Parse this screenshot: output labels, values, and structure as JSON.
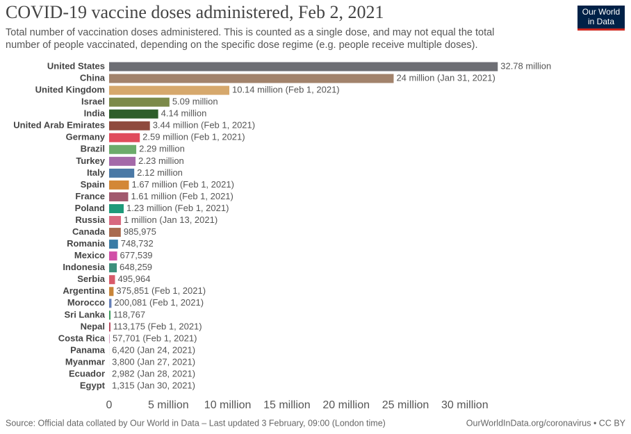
{
  "chart_data": {
    "type": "bar",
    "orientation": "horizontal",
    "title": "COVID-19 vaccine doses administered, Feb 2, 2021",
    "subtitle": [
      "Total number of vaccination doses administered. This is counted as a single dose, and may not equal the total",
      "number of people vaccinated, depending on the specific dose regime (e.g. people receive multiple doses)."
    ],
    "logo": [
      "Our World",
      "in Data"
    ],
    "source": "Source: Official data collated by Our World in Data – Last updated 3 February, 09:00 (London time)",
    "url": "OurWorldInData.org/coronavirus • CC BY",
    "categories": [
      "United States",
      "China",
      "United Kingdom",
      "Israel",
      "India",
      "United Arab Emirates",
      "Germany",
      "Brazil",
      "Turkey",
      "Italy",
      "Spain",
      "France",
      "Poland",
      "Russia",
      "Canada",
      "Romania",
      "Mexico",
      "Indonesia",
      "Serbia",
      "Argentina",
      "Morocco",
      "Sri Lanka",
      "Nepal",
      "Costa Rica",
      "Panama",
      "Myanmar",
      "Ecuador",
      "Egypt"
    ],
    "values": [
      32780000,
      24000000,
      10140000,
      5090000,
      4140000,
      3440000,
      2590000,
      2290000,
      2230000,
      2120000,
      1670000,
      1610000,
      1230000,
      1000000,
      985975,
      748732,
      677539,
      648259,
      495964,
      375851,
      200081,
      118767,
      113175,
      57701,
      6420,
      3800,
      2982,
      1315
    ],
    "value_labels": [
      "32.78 million",
      "24 million (Jan 31, 2021)",
      "10.14 million (Feb 1, 2021)",
      "5.09 million",
      "4.14 million",
      "3.44 million (Feb 1, 2021)",
      "2.59 million (Feb 1, 2021)",
      "2.29 million",
      "2.23 million",
      "2.12 million",
      "1.67 million (Feb 1, 2021)",
      "1.61 million (Feb 1, 2021)",
      "1.23 million (Feb 1, 2021)",
      "1 million (Jan 13, 2021)",
      "985,975",
      "748,732",
      "677,539",
      "648,259",
      "495,964",
      "375,851 (Feb 1, 2021)",
      "200,081 (Feb 1, 2021)",
      "118,767",
      "113,175 (Feb 1, 2021)",
      "57,701 (Feb 1, 2021)",
      "6,420 (Jan 24, 2021)",
      "3,800 (Jan 27, 2021)",
      "2,982 (Jan 28, 2021)",
      "1,315 (Jan 30, 2021)"
    ],
    "colors": [
      "#6d6e74",
      "#a2836c",
      "#d6a86c",
      "#7c8a49",
      "#2e5e2b",
      "#8f4a3e",
      "#e04b5c",
      "#6cab6b",
      "#a469a9",
      "#4a79a6",
      "#d38737",
      "#a1596e",
      "#1e9a7a",
      "#d8697f",
      "#a96b4f",
      "#3a7ca5",
      "#d14fa7",
      "#3d8f7c",
      "#d85a6a",
      "#c8853a",
      "#6680b8",
      "#3a9b5d",
      "#b5455a",
      "#d9a0c0",
      "#8e8e8e",
      "#8e8e8e",
      "#8e8e8e",
      "#8e8e8e"
    ],
    "xlim": [
      0,
      33000000
    ],
    "xticks": [
      0,
      {
        "value": 5000000,
        "label": "5 million"
      },
      {
        "value": 10000000,
        "label": "10 million"
      },
      {
        "value": 15000000,
        "label": "15 million"
      },
      {
        "value": 20000000,
        "label": "20 million"
      },
      {
        "value": 25000000,
        "label": "25 million"
      },
      {
        "value": 30000000,
        "label": "30 million"
      }
    ],
    "grid": false
  }
}
